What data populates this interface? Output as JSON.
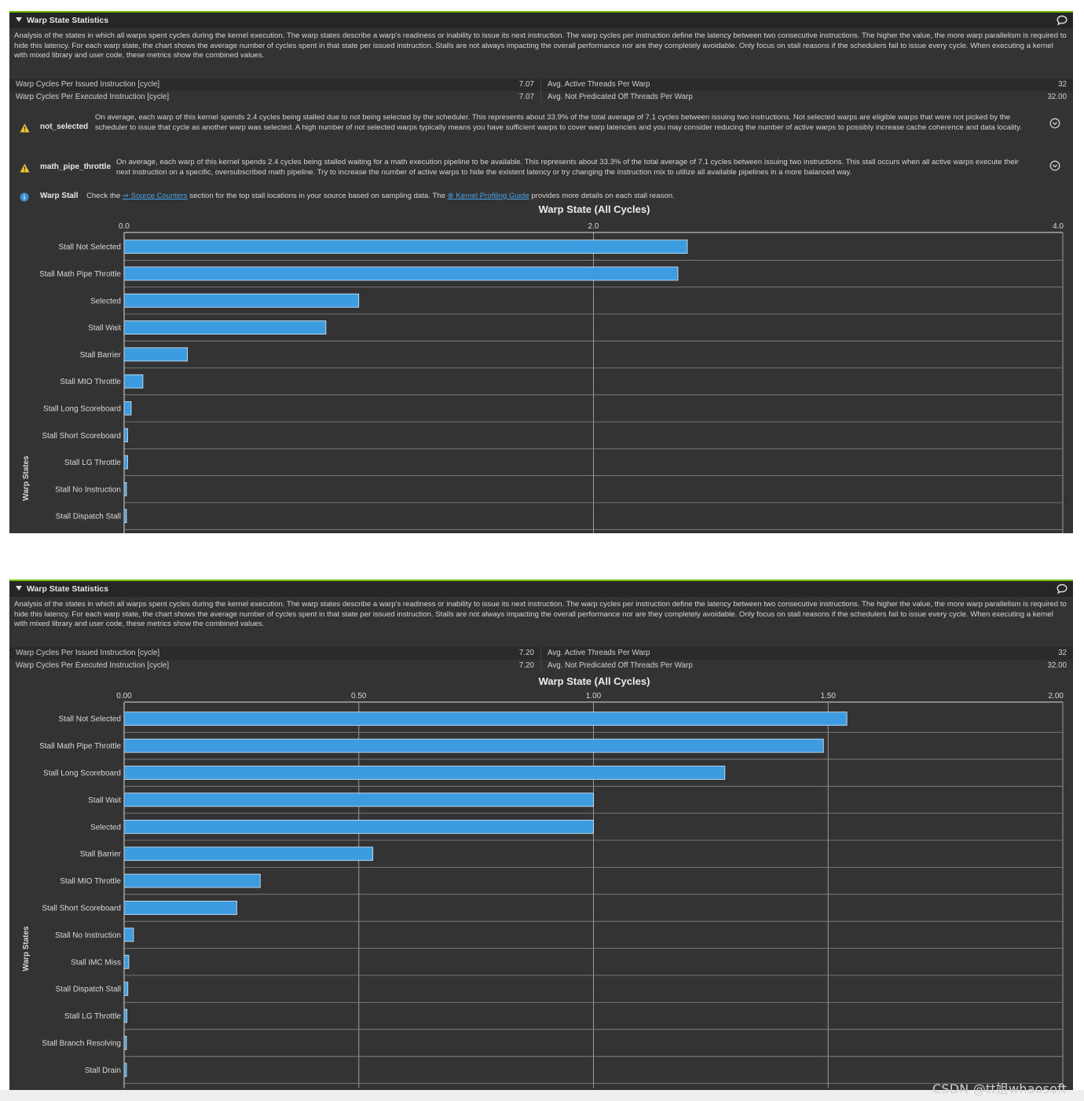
{
  "panels": [
    {
      "header": {
        "title": "Warp State Statistics"
      },
      "description": "Analysis of the states in which all warps spent cycles during the kernel execution. The warp states describe a warp's readiness or inability to issue its next instruction. The warp cycles per instruction define the latency between two consecutive instructions. The higher the value, the more warp parallelism is required to hide this latency. For each warp state, the chart shows the average number of cycles spent in that state per issued instruction. Stalls are not always impacting the overall performance nor are they completely avoidable. Only focus on stall reasons if the schedulers fail to issue every cycle. When executing a kernel with mixed library and user code, these metrics show the combined values.",
      "metrics": [
        {
          "left_label": "Warp Cycles Per Issued Instruction [cycle]",
          "left_value": "7.07",
          "right_label": "Avg. Active Threads Per Warp",
          "right_value": "32"
        },
        {
          "left_label": "Warp Cycles Per Executed Instruction [cycle]",
          "left_value": "7.07",
          "right_label": "Avg. Not Predicated Off Threads Per Warp",
          "right_value": "32.00"
        }
      ],
      "rules": [
        {
          "type": "warning",
          "icon": "warning-icon",
          "name": "not_selected",
          "text": "On average, each warp of this kernel spends 2.4 cycles being stalled due to not being selected by the scheduler. This represents about 33.9% of the total average of 7.1 cycles between issuing two instructions. Not selected warps are eligible warps that were not picked by the scheduler to issue that cycle as another warp was selected. A high number of not selected warps typically means you have sufficient warps to cover warp latencies and you may consider reducing the number of active warps to possibly increase cache coherence and data locality."
        },
        {
          "type": "warning",
          "icon": "warning-icon",
          "name": "math_pipe_throttle",
          "text": "On average, each warp of this kernel spends 2.4 cycles being stalled waiting for a math execution pipeline to be available. This represents about 33.3% of the total average of 7.1 cycles between issuing two instructions. This stall occurs when all active warps execute their next instruction on a specific, oversubscribed math pipeline. Try to increase the number of active warps to hide the existent latency or try changing the instruction mix to utilize all available pipelines in a more balanced way."
        }
      ],
      "info": {
        "icon": "info-icon",
        "name": "Warp Stall",
        "pre": "Check the",
        "link1": "Source Counters",
        "mid": "section for the top stall locations in your source based on sampling data. The",
        "link2": "Kernel Profiling Guide",
        "post": "provides more details on each stall reason."
      }
    },
    {
      "header": {
        "title": "Warp State Statistics"
      },
      "description": "Analysis of the states in which all warps spent cycles during the kernel execution. The warp states describe a warp's readiness or inability to issue its next instruction. The warp cycles per instruction define the latency between two consecutive instructions. The higher the value, the more warp parallelism is required to hide this latency. For each warp state, the chart shows the average number of cycles spent in that state per issued instruction. Stalls are not always impacting the overall performance nor are they completely avoidable. Only focus on stall reasons if the schedulers fail to issue every cycle. When executing a kernel with mixed library and user code, these metrics show the combined values.",
      "metrics": [
        {
          "left_label": "Warp Cycles Per Issued Instruction [cycle]",
          "left_value": "7.20",
          "right_label": "Avg. Active Threads Per Warp",
          "right_value": "32"
        },
        {
          "left_label": "Warp Cycles Per Executed Instruction [cycle]",
          "left_value": "7.20",
          "right_label": "Avg. Not Predicated Off Threads Per Warp",
          "right_value": "32.00"
        }
      ]
    }
  ],
  "colors": {
    "bar": "#3d9be0",
    "accent": "#76b900",
    "panel_bg": "#333333",
    "grid": "#9a9a9a"
  },
  "chart_data": [
    {
      "type": "bar",
      "orientation": "horizontal",
      "title": "Warp State (All Cycles)",
      "ylabel": "Warp States",
      "xlim": [
        0,
        4
      ],
      "xticks": [
        "0.0",
        "2.0",
        "4.0"
      ],
      "xtick_values": [
        0,
        2,
        4
      ],
      "categories": [
        "Stall Not Selected",
        "Stall Math Pipe Throttle",
        "Selected",
        "Stall Wait",
        "Stall Barrier",
        "Stall MIO Throttle",
        "Stall Long Scoreboard",
        "Stall Short Scoreboard",
        "Stall LG Throttle",
        "Stall No Instruction",
        "Stall Dispatch Stall"
      ],
      "values": [
        2.4,
        2.36,
        1.0,
        0.86,
        0.27,
        0.08,
        0.03,
        0.015,
        0.015,
        0.01,
        0.01
      ],
      "grid": true
    },
    {
      "type": "bar",
      "orientation": "horizontal",
      "title": "Warp State (All Cycles)",
      "ylabel": "Warp States",
      "xlim": [
        0,
        2
      ],
      "xticks": [
        "0.00",
        "0.50",
        "1.00",
        "1.50",
        "2.00"
      ],
      "xtick_values": [
        0,
        0.5,
        1.0,
        1.5,
        2.0
      ],
      "categories": [
        "Stall Not Selected",
        "Stall Math Pipe Throttle",
        "Stall Long Scoreboard",
        "Stall Wait",
        "Selected",
        "Stall Barrier",
        "Stall MIO Throttle",
        "Stall Short Scoreboard",
        "Stall No Instruction",
        "Stall IMC Miss",
        "Stall Dispatch Stall",
        "Stall LG Throttle",
        "Stall Branch Resolving",
        "Stall Drain"
      ],
      "values": [
        1.54,
        1.49,
        1.28,
        1.0,
        1.0,
        0.53,
        0.29,
        0.24,
        0.02,
        0.01,
        0.008,
        0.006,
        0.005,
        0.003
      ],
      "grid": true
    }
  ],
  "watermark": "CSDN @tt姐whaosoft"
}
